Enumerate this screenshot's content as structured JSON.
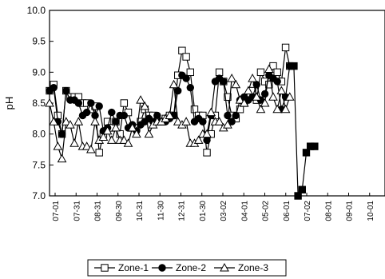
{
  "chart_data": {
    "type": "line",
    "ylabel": "pH",
    "ylim": [
      7.0,
      10.0
    ],
    "yticks": [
      "7.0",
      "7.5",
      "8.0",
      "8.5",
      "9.0",
      "9.5",
      "10.0"
    ],
    "xticks": [
      "07-01",
      "07-31",
      "08-31",
      "09-30",
      "10-31",
      "11-30",
      "12-31",
      "01-30",
      "03-02",
      "04-01",
      "05-02",
      "06-01",
      "07-02",
      "08-01",
      "09-01",
      "10-01"
    ],
    "x_unit": "day",
    "xlim_days": [
      0,
      486
    ],
    "grid": false,
    "legend_position": "bottom-center",
    "series": [
      {
        "name": "Zone-1",
        "marker": "open-square",
        "points": [
          [
            0,
            8.7
          ],
          [
            6,
            8.8
          ],
          [
            12,
            8.3
          ],
          [
            18,
            8.0
          ],
          [
            24,
            8.7
          ],
          [
            30,
            8.6
          ],
          [
            36,
            8.6
          ],
          [
            42,
            8.6
          ],
          [
            48,
            8.5
          ],
          [
            54,
            8.5
          ],
          [
            60,
            8.4
          ],
          [
            66,
            8.45
          ],
          [
            72,
            7.7
          ],
          [
            78,
            8.0
          ],
          [
            84,
            8.2
          ],
          [
            90,
            8.1
          ],
          [
            96,
            8.2
          ],
          [
            102,
            8.0
          ],
          [
            108,
            8.5
          ],
          [
            114,
            8.35
          ],
          [
            120,
            8.1
          ],
          [
            126,
            8.1
          ],
          [
            132,
            8.2
          ],
          [
            138,
            8.4
          ],
          [
            144,
            8.3
          ],
          [
            150,
            8.3
          ],
          [
            156,
            8.2
          ],
          [
            162,
            8.2
          ],
          [
            168,
            8.25
          ],
          [
            174,
            8.3
          ],
          [
            180,
            8.3
          ],
          [
            186,
            8.95
          ],
          [
            192,
            9.35
          ],
          [
            198,
            9.25
          ],
          [
            204,
            9.0
          ],
          [
            210,
            8.4
          ],
          [
            216,
            8.3
          ],
          [
            222,
            8.3
          ],
          [
            228,
            7.7
          ],
          [
            234,
            8.0
          ],
          [
            240,
            8.3
          ],
          [
            246,
            9.0
          ],
          [
            252,
            8.85
          ],
          [
            258,
            8.6
          ],
          [
            264,
            8.3
          ],
          [
            270,
            8.25
          ],
          [
            276,
            8.4
          ],
          [
            282,
            8.5
          ],
          [
            288,
            8.6
          ],
          [
            294,
            8.7
          ],
          [
            300,
            8.55
          ],
          [
            306,
            9.0
          ],
          [
            312,
            8.85
          ],
          [
            318,
            8.8
          ],
          [
            324,
            9.1
          ],
          [
            330,
            9.0
          ],
          [
            336,
            8.85
          ],
          [
            342,
            9.4
          ],
          [
            348,
            9.1
          ]
        ]
      },
      {
        "name": "Zone-2",
        "marker": "filled-circle",
        "points": [
          [
            0,
            8.7
          ],
          [
            6,
            8.75
          ],
          [
            12,
            8.2
          ],
          [
            18,
            8.0
          ],
          [
            24,
            8.7
          ],
          [
            30,
            8.55
          ],
          [
            36,
            8.55
          ],
          [
            42,
            8.5
          ],
          [
            48,
            8.3
          ],
          [
            54,
            8.35
          ],
          [
            60,
            8.5
          ],
          [
            66,
            8.3
          ],
          [
            72,
            8.45
          ],
          [
            78,
            8.05
          ],
          [
            84,
            8.1
          ],
          [
            90,
            8.35
          ],
          [
            96,
            8.2
          ],
          [
            102,
            8.3
          ],
          [
            108,
            8.3
          ],
          [
            114,
            8.1
          ],
          [
            120,
            8.15
          ],
          [
            126,
            8.05
          ],
          [
            132,
            8.15
          ],
          [
            138,
            8.2
          ],
          [
            144,
            8.25
          ],
          [
            150,
            8.2
          ],
          [
            156,
            8.3
          ],
          [
            162,
            8.2
          ],
          [
            168,
            8.2
          ],
          [
            174,
            8.25
          ],
          [
            180,
            8.3
          ],
          [
            186,
            8.7
          ],
          [
            192,
            8.95
          ],
          [
            198,
            8.9
          ],
          [
            204,
            8.75
          ],
          [
            210,
            8.2
          ],
          [
            216,
            8.25
          ],
          [
            222,
            8.2
          ],
          [
            228,
            7.9
          ],
          [
            234,
            8.3
          ],
          [
            240,
            8.85
          ],
          [
            246,
            8.9
          ],
          [
            252,
            8.85
          ],
          [
            258,
            8.3
          ],
          [
            264,
            8.2
          ],
          [
            270,
            8.3
          ],
          [
            276,
            8.55
          ],
          [
            282,
            8.6
          ],
          [
            288,
            8.55
          ],
          [
            294,
            8.6
          ],
          [
            300,
            8.8
          ],
          [
            306,
            8.55
          ],
          [
            312,
            8.65
          ],
          [
            318,
            8.95
          ],
          [
            324,
            8.9
          ],
          [
            330,
            8.85
          ],
          [
            336,
            8.4
          ],
          [
            342,
            8.6
          ],
          [
            348,
            9.1
          ]
        ]
      },
      {
        "name": "Zone-3",
        "marker": "open-triangle",
        "points": [
          [
            0,
            8.5
          ],
          [
            6,
            8.2
          ],
          [
            12,
            7.8
          ],
          [
            18,
            7.6
          ],
          [
            24,
            8.2
          ],
          [
            30,
            8.15
          ],
          [
            36,
            7.85
          ],
          [
            42,
            8.2
          ],
          [
            48,
            7.8
          ],
          [
            54,
            7.8
          ],
          [
            60,
            7.75
          ],
          [
            66,
            8.2
          ],
          [
            72,
            7.9
          ],
          [
            78,
            7.95
          ],
          [
            84,
            8.05
          ],
          [
            90,
            7.9
          ],
          [
            96,
            8.1
          ],
          [
            102,
            7.9
          ],
          [
            108,
            7.9
          ],
          [
            114,
            7.85
          ],
          [
            120,
            8.1
          ],
          [
            126,
            8.0
          ],
          [
            132,
            8.55
          ],
          [
            138,
            8.45
          ],
          [
            144,
            8.0
          ],
          [
            150,
            8.15
          ],
          [
            156,
            8.2
          ],
          [
            162,
            8.2
          ],
          [
            168,
            8.25
          ],
          [
            174,
            8.3
          ],
          [
            180,
            8.8
          ],
          [
            186,
            8.2
          ],
          [
            192,
            8.15
          ],
          [
            198,
            8.2
          ],
          [
            204,
            7.85
          ],
          [
            210,
            7.85
          ],
          [
            216,
            7.9
          ],
          [
            222,
            8.0
          ],
          [
            228,
            8.0
          ],
          [
            234,
            8.35
          ],
          [
            240,
            8.2
          ],
          [
            246,
            8.2
          ],
          [
            252,
            8.1
          ],
          [
            258,
            8.15
          ],
          [
            264,
            8.9
          ],
          [
            270,
            8.8
          ],
          [
            276,
            8.55
          ],
          [
            282,
            8.5
          ],
          [
            288,
            8.7
          ],
          [
            294,
            8.9
          ],
          [
            300,
            8.6
          ],
          [
            306,
            8.4
          ],
          [
            312,
            8.5
          ],
          [
            318,
            9.05
          ],
          [
            324,
            8.6
          ],
          [
            330,
            8.4
          ],
          [
            336,
            8.7
          ],
          [
            342,
            8.4
          ],
          [
            348,
            8.6
          ]
        ]
      },
      {
        "name": "",
        "marker": "filled-square",
        "points": [
          [
            354,
            9.1
          ],
          [
            360,
            7.0
          ],
          [
            366,
            7.1
          ],
          [
            372,
            7.7
          ],
          [
            378,
            7.8
          ],
          [
            384,
            7.8
          ]
        ]
      }
    ]
  }
}
